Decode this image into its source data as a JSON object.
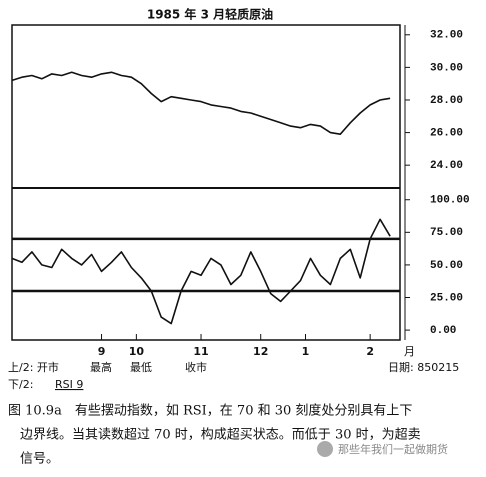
{
  "chart_data": [
    {
      "type": "line",
      "title": "1985 年 3 月轻质原油",
      "x": [
        0,
        2,
        4,
        6,
        8,
        10,
        12,
        14,
        16,
        18,
        20,
        22,
        24,
        26,
        28,
        30,
        32,
        34,
        36,
        38,
        40,
        42,
        44,
        46,
        48,
        50,
        52,
        54,
        56,
        58,
        60,
        62,
        64,
        66,
        68,
        70,
        72,
        74,
        76
      ],
      "values": [
        29.2,
        29.4,
        29.5,
        29.3,
        29.6,
        29.5,
        29.7,
        29.5,
        29.4,
        29.6,
        29.7,
        29.5,
        29.4,
        29.0,
        28.4,
        27.9,
        28.2,
        28.1,
        28.0,
        27.9,
        27.7,
        27.6,
        27.5,
        27.3,
        27.2,
        27.0,
        26.8,
        26.6,
        26.4,
        26.3,
        26.5,
        26.4,
        26.0,
        25.9,
        26.6,
        27.2,
        27.7,
        28.0,
        28.1
      ],
      "color": "#111111",
      "xlim": [
        0,
        78
      ],
      "ylim": [
        22.6,
        32.6
      ],
      "yticks": [
        {
          "value": 32,
          "label": "32.00"
        },
        {
          "value": 30,
          "label": "30.00"
        },
        {
          "value": 28,
          "label": "28.00"
        },
        {
          "value": 26,
          "label": "26.00"
        },
        {
          "value": 24,
          "label": "24.00"
        }
      ]
    },
    {
      "type": "line",
      "x": [
        0,
        2,
        4,
        6,
        8,
        10,
        12,
        14,
        16,
        18,
        20,
        22,
        24,
        26,
        28,
        30,
        32,
        34,
        36,
        38,
        40,
        42,
        44,
        46,
        48,
        50,
        52,
        54,
        56,
        58,
        60,
        62,
        64,
        66,
        68,
        70,
        72,
        74,
        76
      ],
      "values": [
        55,
        52,
        60,
        50,
        48,
        62,
        55,
        50,
        58,
        45,
        52,
        60,
        48,
        40,
        30,
        10,
        5,
        30,
        45,
        42,
        55,
        50,
        35,
        42,
        60,
        45,
        28,
        22,
        30,
        38,
        55,
        42,
        35,
        55,
        62,
        40,
        70,
        85,
        72
      ],
      "color": "#111111",
      "xlim": [
        0,
        78
      ],
      "ylim": [
        -7.6,
        109
      ],
      "yticks": [
        {
          "value": 100,
          "label": "100.00"
        },
        {
          "value": 75,
          "label": "75.00"
        },
        {
          "value": 50,
          "label": "50.00"
        },
        {
          "value": 25,
          "label": "25.00"
        },
        {
          "value": 0,
          "label": "0.00"
        }
      ],
      "hlines": [
        70,
        30
      ],
      "xticks": [
        {
          "value": 18,
          "label": "9"
        },
        {
          "value": 25,
          "label": "10"
        },
        {
          "value": 38,
          "label": "11"
        },
        {
          "value": 50,
          "label": "12"
        },
        {
          "value": 59,
          "label": "1"
        },
        {
          "value": 72,
          "label": "2"
        }
      ],
      "xlabel": "月"
    }
  ],
  "legend": {
    "upper": [
      "上/2: 开市",
      "最高",
      "最低",
      "收市"
    ],
    "lower": "下/2:",
    "lower_item": "RSI 9",
    "date": "日期: 850215"
  },
  "caption": [
    "图 10.9a　有些摆动指数，如 RSI，在 70 和 30 刻度处分别具有上下",
    "边界线。当其读数超过 70 时，构成超买状态。而低于 30 时，为超卖",
    "信号。"
  ],
  "watermark": "那些年我们一起做期货"
}
